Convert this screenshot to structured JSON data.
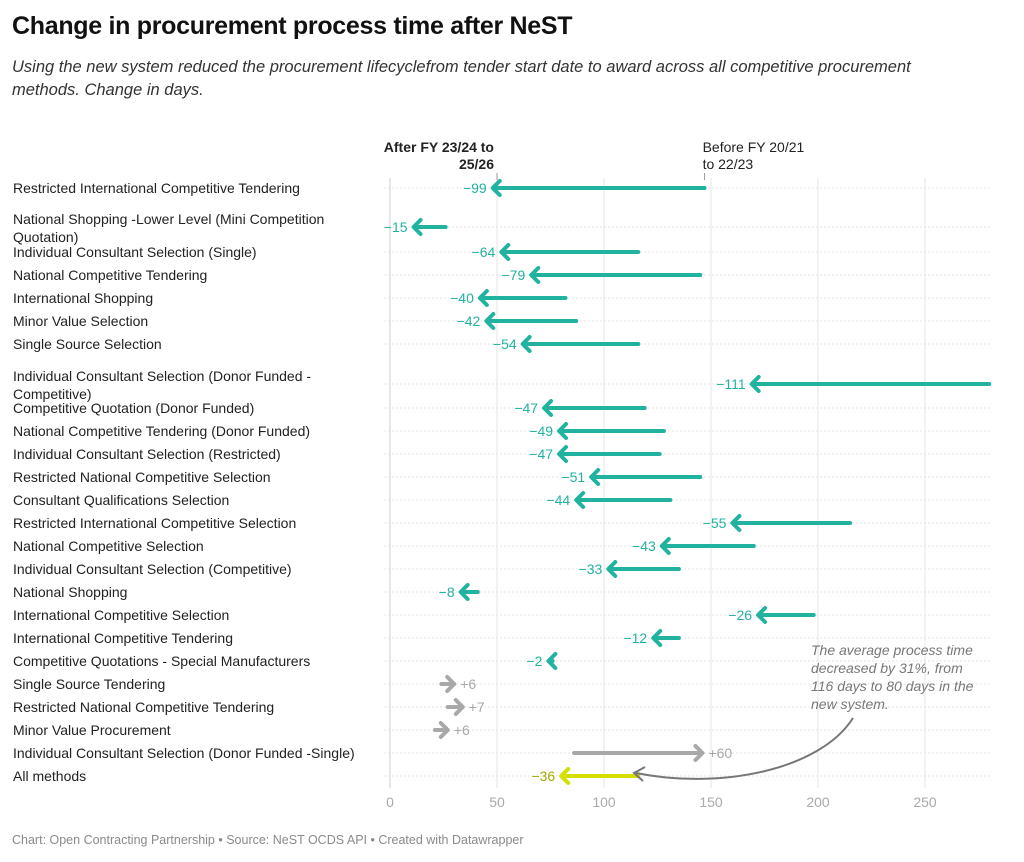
{
  "title": "Change in procurement process time after NeST",
  "subtitle": "Using the new system reduced the procurement lifecyclefrom tender start date to award across all competitive procurement methods. Change in days.",
  "footer": "Chart: Open Contracting Partnership • Source: NeST OCDS API • Created with Datawrapper",
  "colors": {
    "decrease": "#22b3a0",
    "increase": "#a8a8a8",
    "all_methods": "#d4df00",
    "all_methods_label": "#a3ab00",
    "grid": "#e6e6e6",
    "annotation": "#777777"
  },
  "chart_data": {
    "type": "arrow",
    "title": "Change in procurement process time after NeST",
    "xlabel": "",
    "ylabel": "",
    "xlim": [
      0,
      280
    ],
    "xticks": [
      0,
      50,
      100,
      150,
      200,
      250
    ],
    "grid": true,
    "header_after": [
      "After FY 23/24 to",
      "25/26"
    ],
    "header_before": [
      "Before FY 20/21",
      "to 22/23"
    ],
    "rows": [
      {
        "label": [
          "Restricted International Competitive Tendering"
        ],
        "before": 147,
        "after": 48,
        "change": "−99"
      },
      {
        "label": [
          "National Shopping -Lower Level (Mini Competition",
          "Quotation)"
        ],
        "before": 26,
        "after": 11,
        "change": "−15"
      },
      {
        "label": [
          "Individual Consultant Selection (Single)"
        ],
        "before": 116,
        "after": 52,
        "change": "−64"
      },
      {
        "label": [
          "National Competitive Tendering"
        ],
        "before": 145,
        "after": 66,
        "change": "−79"
      },
      {
        "label": [
          "International Shopping"
        ],
        "before": 82,
        "after": 42,
        "change": "−40"
      },
      {
        "label": [
          "Minor Value Selection"
        ],
        "before": 87,
        "after": 45,
        "change": "−42"
      },
      {
        "label": [
          "Single Source Selection"
        ],
        "before": 116,
        "after": 62,
        "change": "−54"
      },
      {
        "label": [
          "Individual Consultant Selection (Donor Funded -",
          "Competitive)"
        ],
        "before": 280,
        "after": 169,
        "change": "−111"
      },
      {
        "label": [
          "Competitive Quotation (Donor Funded)"
        ],
        "before": 119,
        "after": 72,
        "change": "−47"
      },
      {
        "label": [
          "National Competitive Tendering (Donor Funded)"
        ],
        "before": 128,
        "after": 79,
        "change": "−49"
      },
      {
        "label": [
          "Individual Consultant Selection (Restricted)"
        ],
        "before": 126,
        "after": 79,
        "change": "−47"
      },
      {
        "label": [
          "Restricted National Competitive Selection"
        ],
        "before": 145,
        "after": 94,
        "change": "−51"
      },
      {
        "label": [
          "Consultant Qualifications Selection"
        ],
        "before": 131,
        "after": 87,
        "change": "−44"
      },
      {
        "label": [
          "Restricted International Competitive Selection"
        ],
        "before": 215,
        "after": 160,
        "change": "−55"
      },
      {
        "label": [
          "National Competitive Selection"
        ],
        "before": 170,
        "after": 127,
        "change": "−43"
      },
      {
        "label": [
          "Individual Consultant Selection (Competitive)"
        ],
        "before": 135,
        "after": 102,
        "change": "−33"
      },
      {
        "label": [
          "National Shopping"
        ],
        "before": 41,
        "after": 33,
        "change": "−8"
      },
      {
        "label": [
          "International Competitive Selection"
        ],
        "before": 198,
        "after": 172,
        "change": "−26"
      },
      {
        "label": [
          "International Competitive Tendering"
        ],
        "before": 135,
        "after": 123,
        "change": "−12"
      },
      {
        "label": [
          "Competitive Quotations - Special Manufacturers"
        ],
        "before": 76,
        "after": 74,
        "change": "−2"
      },
      {
        "label": [
          "Single Source Tendering"
        ],
        "before": 24,
        "after": 30,
        "change": "+6"
      },
      {
        "label": [
          "Restricted National Competitive Tendering"
        ],
        "before": 27,
        "after": 34,
        "change": "+7"
      },
      {
        "label": [
          "Minor Value Procurement"
        ],
        "before": 21,
        "after": 27,
        "change": "+6"
      },
      {
        "label": [
          "Individual Consultant Selection (Donor Funded -Single)"
        ],
        "before": 86,
        "after": 146,
        "change": "+60"
      },
      {
        "label": [
          "All methods"
        ],
        "before": 116,
        "after": 80,
        "change": "−36",
        "highlight": true
      }
    ],
    "annotation": {
      "lines": [
        "The average process time",
        "decreased by 31%, from",
        "116 days to 80 days in the",
        "new system."
      ],
      "points_to": "All methods"
    }
  }
}
